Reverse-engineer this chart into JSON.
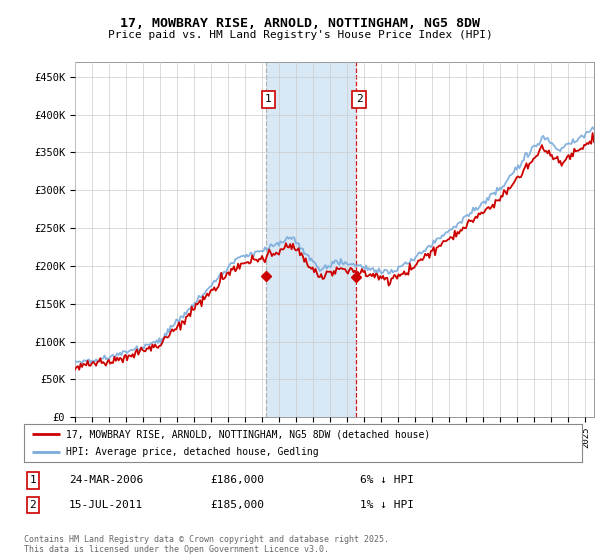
{
  "title": "17, MOWBRAY RISE, ARNOLD, NOTTINGHAM, NG5 8DW",
  "subtitle": "Price paid vs. HM Land Registry's House Price Index (HPI)",
  "ylabel_ticks": [
    "£0",
    "£50K",
    "£100K",
    "£150K",
    "£200K",
    "£250K",
    "£300K",
    "£350K",
    "£400K",
    "£450K"
  ],
  "ytick_values": [
    0,
    50000,
    100000,
    150000,
    200000,
    250000,
    300000,
    350000,
    400000,
    450000
  ],
  "ylim": [
    0,
    470000
  ],
  "xlim_start": 1995.0,
  "xlim_end": 2025.5,
  "sale1_x": 2006.22,
  "sale1_y": 186000,
  "sale2_x": 2011.54,
  "sale2_y": 185000,
  "sale1_date": "24-MAR-2006",
  "sale1_price": "£186,000",
  "sale1_pct": "6% ↓ HPI",
  "sale2_date": "15-JUL-2011",
  "sale2_price": "£185,000",
  "sale2_pct": "1% ↓ HPI",
  "legend_line1": "17, MOWBRAY RISE, ARNOLD, NOTTINGHAM, NG5 8DW (detached house)",
  "legend_line2": "HPI: Average price, detached house, Gedling",
  "footer": "Contains HM Land Registry data © Crown copyright and database right 2025.\nThis data is licensed under the Open Government Licence v3.0.",
  "red_color": "#cc0000",
  "blue_color": "#7aabdb",
  "shade_color": "#d8e8f5",
  "grid_color": "#cccccc"
}
